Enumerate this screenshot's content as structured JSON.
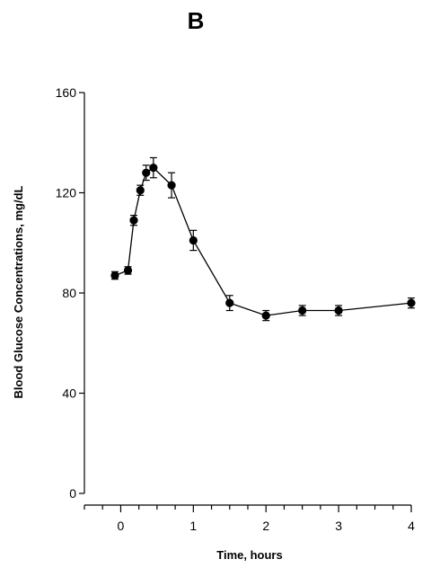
{
  "chart_data": {
    "type": "line",
    "panel_label": "B",
    "title": "",
    "xlabel": "Time, hours",
    "ylabel": "Blood Glucose Concentrations, mg/dL",
    "xlim": [
      -0.5,
      4
    ],
    "ylim": [
      0,
      160
    ],
    "xticks_major": [
      0,
      1,
      2,
      3,
      4
    ],
    "xtick_labels": [
      "0",
      "1",
      "2",
      "3",
      "4"
    ],
    "yticks": [
      0,
      40,
      80,
      120,
      160
    ],
    "ytick_labels": [
      "0",
      "40",
      "80",
      "120",
      "160"
    ],
    "grid": false,
    "series": [
      {
        "x": [
          -0.08,
          0.1,
          0.18,
          0.27,
          0.35,
          0.45,
          0.7,
          1.0,
          1.5,
          2.0,
          2.5,
          3.0,
          4.0
        ],
        "values": [
          87,
          89,
          109,
          121,
          128,
          130,
          123,
          101,
          76,
          71,
          73,
          73,
          76
        ],
        "error": [
          1.5,
          1.5,
          2,
          2,
          3,
          4,
          5,
          4,
          3,
          2,
          2,
          2,
          2
        ]
      }
    ]
  }
}
